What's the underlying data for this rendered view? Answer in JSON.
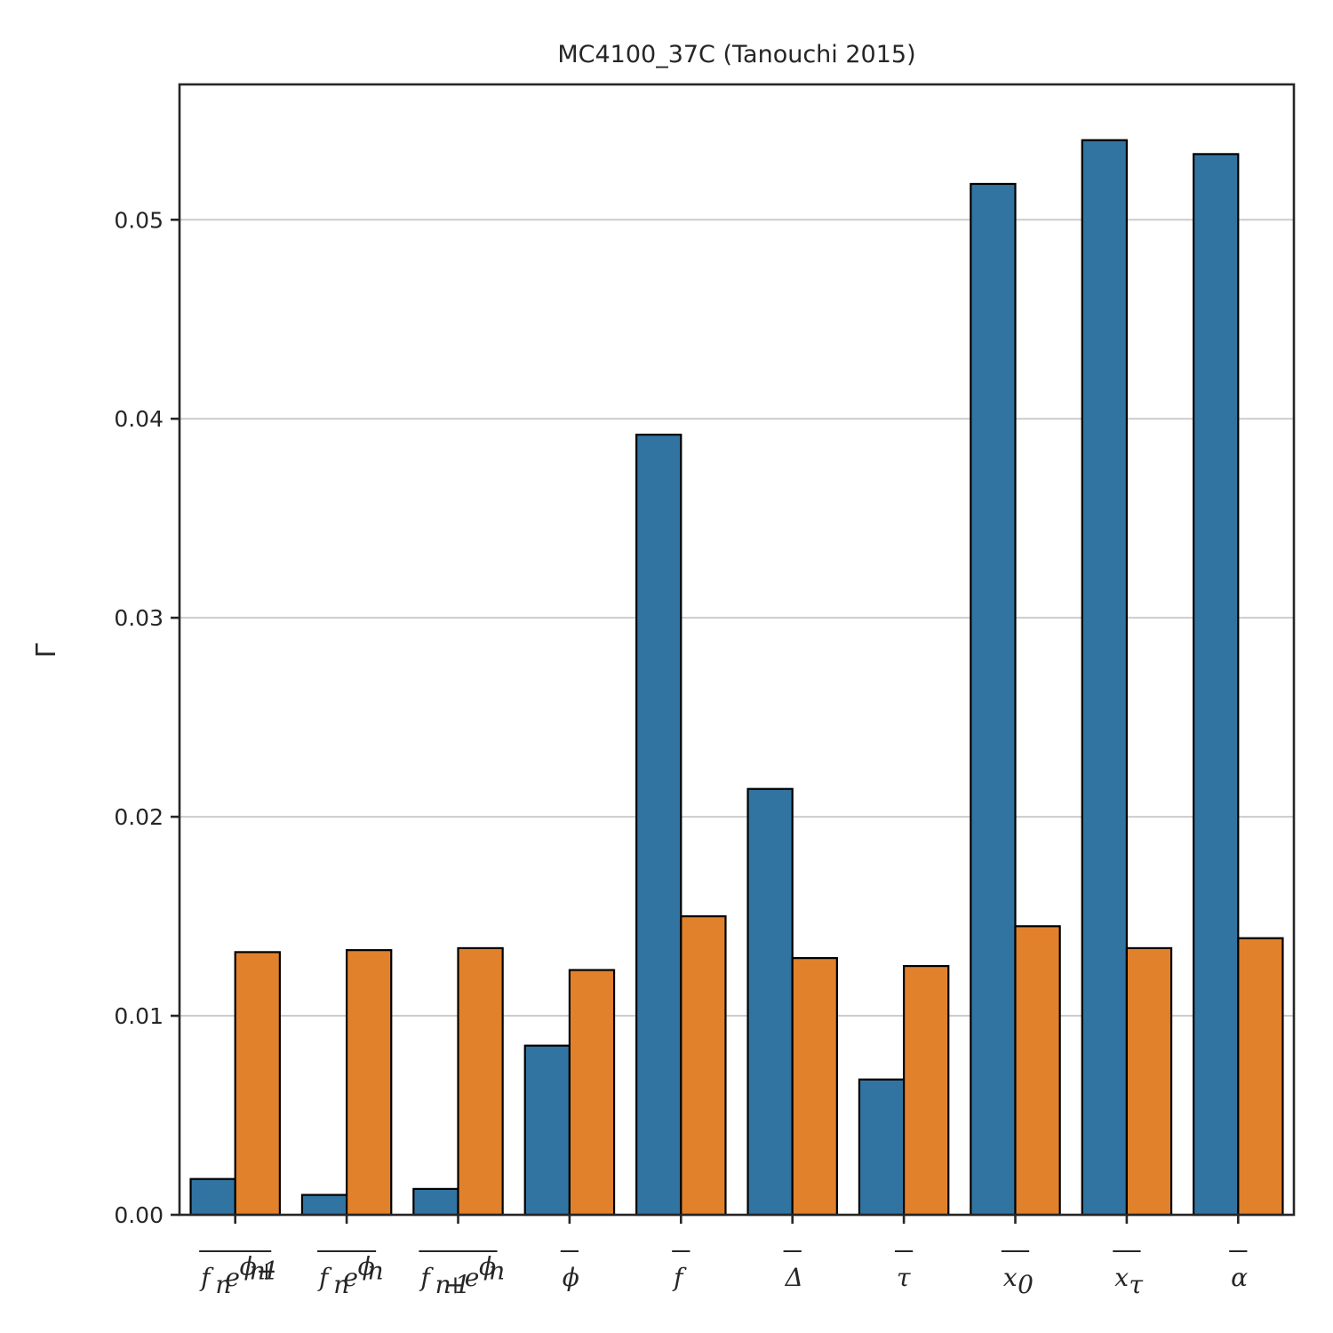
{
  "chart_data": {
    "type": "bar",
    "title": "MC4100_37C (Tanouchi 2015)",
    "xlabel": "",
    "ylabel": "Γ",
    "ylim": [
      0,
      0.0568
    ],
    "yticks": [
      "0.00",
      "0.01",
      "0.02",
      "0.03",
      "0.04",
      "0.05"
    ],
    "grid": "horizontal",
    "legend": "none",
    "categories": [
      "\\overline{f_n e^{\\phi_{n+1}}}",
      "\\overline{f_n e^{\\phi_n}}",
      "\\overline{f_{n+1} e^{\\phi_n}}",
      "\\overline{\\phi}",
      "\\overline{f}",
      "\\overline{\\Delta}",
      "\\overline{\\tau}",
      "\\overline{x_0}",
      "\\overline{x_\\tau}",
      "\\overline{\\alpha}"
    ],
    "series": [
      {
        "color": "#3274a1",
        "values": [
          0.0018,
          0.001,
          0.0013,
          0.0085,
          0.0392,
          0.0214,
          0.0068,
          0.0518,
          0.054,
          0.0533
        ]
      },
      {
        "color": "#e1812c",
        "values": [
          0.0132,
          0.0133,
          0.0134,
          0.0123,
          0.015,
          0.0129,
          0.0125,
          0.0145,
          0.0134,
          0.0139
        ]
      }
    ]
  }
}
